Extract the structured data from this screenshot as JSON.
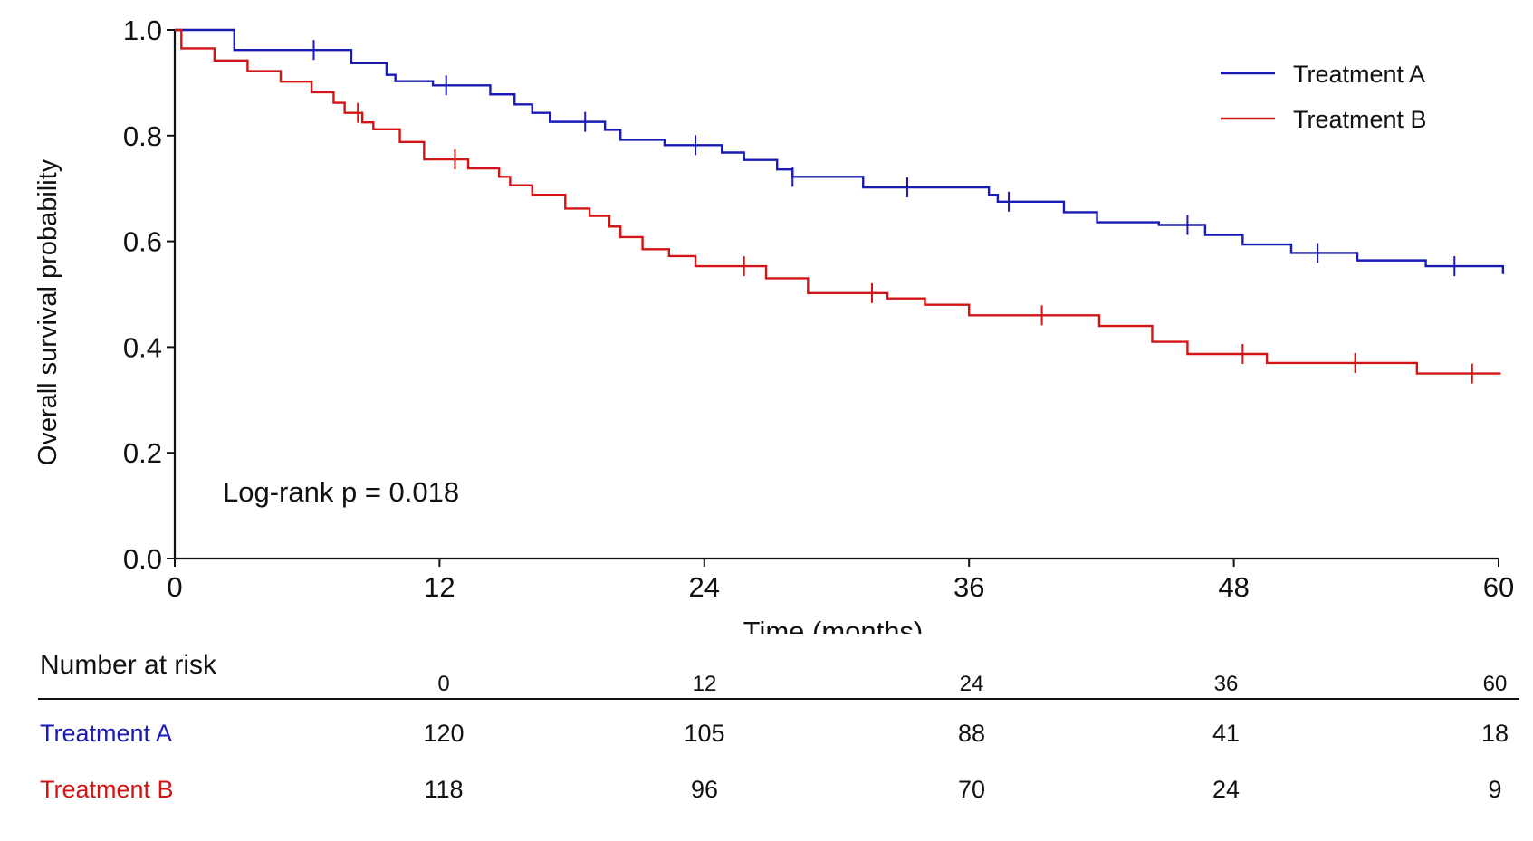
{
  "chart_data": {
    "type": "line",
    "subtype": "kaplan-meier",
    "xlabel": "Time (months)",
    "ylabel": "Overall survival probability",
    "xlim": [
      0,
      60
    ],
    "ylim": [
      0,
      1.0
    ],
    "x_ticks": [
      0,
      12,
      24,
      36,
      48,
      60
    ],
    "y_ticks": [
      0.0,
      0.2,
      0.4,
      0.6,
      0.8,
      1.0
    ],
    "y_tick_labels": [
      "0.0",
      "0.2",
      "0.4",
      "0.6",
      "0.8",
      "1.0"
    ],
    "grid": false,
    "legend_position": "top-right",
    "annotation": "Log-rank p = 0.018",
    "series": [
      {
        "name": "Treatment A",
        "color": "#1a1ab4",
        "steps": [
          [
            0,
            1.0
          ],
          [
            2.7,
            0.962
          ],
          [
            8.0,
            0.937
          ],
          [
            9.6,
            0.915
          ],
          [
            10.0,
            0.903
          ],
          [
            11.7,
            0.895
          ],
          [
            14.3,
            0.878
          ],
          [
            15.4,
            0.859
          ],
          [
            16.2,
            0.843
          ],
          [
            17.0,
            0.826
          ],
          [
            19.5,
            0.811
          ],
          [
            20.2,
            0.792
          ],
          [
            22.2,
            0.782
          ],
          [
            24.8,
            0.768
          ],
          [
            25.8,
            0.754
          ],
          [
            27.3,
            0.736
          ],
          [
            28.0,
            0.722
          ],
          [
            31.2,
            0.702
          ],
          [
            36.9,
            0.688
          ],
          [
            37.3,
            0.675
          ],
          [
            40.3,
            0.655
          ],
          [
            41.8,
            0.636
          ],
          [
            44.6,
            0.631
          ],
          [
            46.7,
            0.612
          ],
          [
            48.4,
            0.594
          ],
          [
            50.6,
            0.578
          ],
          [
            53.6,
            0.564
          ],
          [
            56.7,
            0.553
          ],
          [
            60.2,
            0.538
          ]
        ],
        "censor_times": [
          6.3,
          12.3,
          18.6,
          23.6,
          28.0,
          33.2,
          37.8,
          45.9,
          51.8,
          58.0
        ]
      },
      {
        "name": "Treatment B",
        "color": "#d21414",
        "steps": [
          [
            0,
            1.0
          ],
          [
            0.3,
            0.965
          ],
          [
            1.8,
            0.942
          ],
          [
            3.3,
            0.922
          ],
          [
            4.8,
            0.902
          ],
          [
            6.2,
            0.882
          ],
          [
            7.2,
            0.862
          ],
          [
            7.7,
            0.843
          ],
          [
            8.5,
            0.825
          ],
          [
            9.0,
            0.812
          ],
          [
            10.2,
            0.788
          ],
          [
            11.3,
            0.755
          ],
          [
            13.3,
            0.738
          ],
          [
            14.7,
            0.722
          ],
          [
            15.2,
            0.706
          ],
          [
            16.2,
            0.688
          ],
          [
            17.7,
            0.662
          ],
          [
            18.8,
            0.648
          ],
          [
            19.7,
            0.628
          ],
          [
            20.2,
            0.608
          ],
          [
            21.2,
            0.585
          ],
          [
            22.4,
            0.572
          ],
          [
            23.6,
            0.553
          ],
          [
            26.8,
            0.53
          ],
          [
            28.7,
            0.502
          ],
          [
            32.3,
            0.492
          ],
          [
            34.0,
            0.48
          ],
          [
            36.0,
            0.46
          ],
          [
            41.9,
            0.44
          ],
          [
            44.3,
            0.41
          ],
          [
            45.9,
            0.387
          ],
          [
            49.5,
            0.37
          ],
          [
            56.3,
            0.35
          ],
          [
            60.1,
            0.35
          ]
        ],
        "censor_times": [
          8.3,
          12.7,
          25.8,
          31.6,
          39.3,
          48.4,
          53.5,
          58.8
        ]
      }
    ]
  },
  "risk_table": {
    "title": "Number at risk",
    "times": [
      "0",
      "12",
      "24",
      "36",
      "60"
    ],
    "rows": [
      {
        "name": "Treatment A",
        "color": "#1a1ab4",
        "values": [
          "120",
          "105",
          "88",
          "41",
          "18"
        ]
      },
      {
        "name": "Treatment B",
        "color": "#d21414",
        "values": [
          "118",
          "96",
          "70",
          "24",
          "9"
        ]
      }
    ]
  }
}
